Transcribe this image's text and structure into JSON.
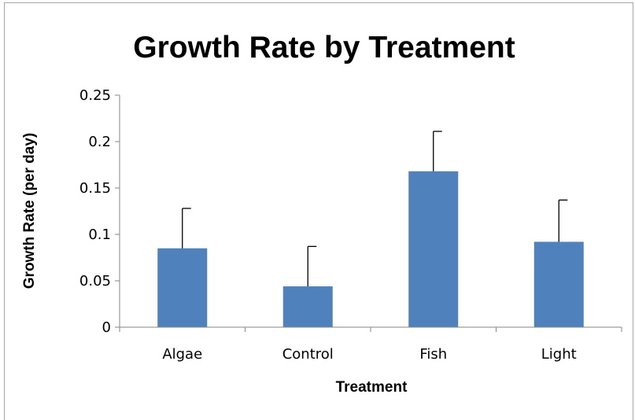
{
  "chart_data": {
    "type": "bar",
    "title": "Growth Rate by Treatment",
    "xlabel": "Treatment",
    "ylabel": "Growth Rate (per day)",
    "categories": [
      "Algae",
      "Control",
      "Fish",
      "Light"
    ],
    "values": [
      0.085,
      0.044,
      0.168,
      0.092
    ],
    "error_upper": [
      0.043,
      0.043,
      0.043,
      0.045
    ],
    "ylim": [
      0,
      0.25
    ],
    "yticks": [
      0,
      0.05,
      0.1,
      0.15,
      0.2,
      0.25
    ],
    "ytick_labels": [
      "0",
      "0.05",
      "0.1",
      "0.15",
      "0.2",
      "0.25"
    ],
    "grid": false,
    "legend": "none",
    "bar_color": "#4f81bd",
    "error_bar_color": "#000000"
  }
}
